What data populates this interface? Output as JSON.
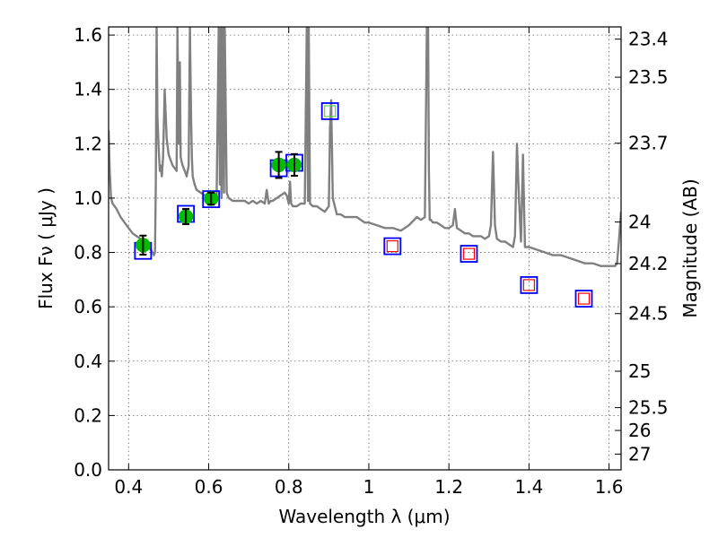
{
  "chart_data": {
    "type": "scatter",
    "title": "",
    "xlabel": "Wavelength  λ (μm)",
    "ylabel_left": "Flux  Fν  ( μJy )",
    "ylabel_right": "Magnitude (AB)",
    "xlim": [
      0.35,
      1.63
    ],
    "ylim": [
      0.0,
      1.63
    ],
    "grid": true,
    "x_ticks": [
      0.4,
      0.6,
      0.8,
      1.0,
      1.2,
      1.4,
      1.6
    ],
    "x_tick_labels": [
      "0.4",
      "0.6",
      "0.8",
      "1",
      "1.2",
      "1.4",
      "1.6"
    ],
    "y_ticks": [
      0.0,
      0.2,
      0.4,
      0.6,
      0.8,
      1.0,
      1.2,
      1.4,
      1.6
    ],
    "y_tick_labels": [
      "0.0",
      "0.2",
      "0.4",
      "0.6",
      "0.8",
      "1.0",
      "1.2",
      "1.4",
      "1.6"
    ],
    "mag_ticks": [
      {
        "label": "23.4",
        "flux": 1.585
      },
      {
        "label": "23.5",
        "flux": 1.445
      },
      {
        "label": "23.7",
        "flux": 1.202
      },
      {
        "label": "24",
        "flux": 0.912
      },
      {
        "label": "24.2",
        "flux": 0.759
      },
      {
        "label": "24.5",
        "flux": 0.575
      },
      {
        "label": "25",
        "flux": 0.363
      },
      {
        "label": "25.5",
        "flux": 0.229
      },
      {
        "label": "26",
        "flux": 0.145
      },
      {
        "label": "27",
        "flux": 0.058
      }
    ],
    "colors": {
      "spectrum": "#808080",
      "observed": "#00bb00",
      "model_box": "#0000ff",
      "synthetic_optical": "#66cc66",
      "synthetic_nir": "#ff0000",
      "errorbar": "#000000"
    },
    "series": [
      {
        "name": "model spectrum",
        "kind": "line",
        "x": [
          0.35,
          0.353,
          0.356,
          0.36,
          0.37,
          0.38,
          0.39,
          0.4,
          0.41,
          0.42,
          0.43,
          0.44,
          0.45,
          0.455,
          0.46,
          0.463,
          0.466,
          0.468,
          0.47,
          0.472,
          0.475,
          0.478,
          0.48,
          0.483,
          0.486,
          0.49,
          0.495,
          0.5,
          0.505,
          0.51,
          0.515,
          0.52,
          0.522,
          0.525,
          0.528,
          0.53,
          0.535,
          0.54,
          0.545,
          0.55,
          0.553,
          0.556,
          0.558,
          0.56,
          0.565,
          0.57,
          0.58,
          0.59,
          0.6,
          0.61,
          0.62,
          0.625,
          0.628,
          0.63,
          0.632,
          0.635,
          0.638,
          0.64,
          0.645,
          0.65,
          0.66,
          0.67,
          0.68,
          0.69,
          0.7,
          0.71,
          0.72,
          0.73,
          0.74,
          0.745,
          0.75,
          0.755,
          0.76,
          0.77,
          0.78,
          0.79,
          0.795,
          0.8,
          0.803,
          0.806,
          0.81,
          0.82,
          0.83,
          0.84,
          0.845,
          0.848,
          0.85,
          0.853,
          0.86,
          0.87,
          0.88,
          0.89,
          0.9,
          0.903,
          0.906,
          0.91,
          0.92,
          0.93,
          0.94,
          0.95,
          0.96,
          0.97,
          0.98,
          0.99,
          1.0,
          1.02,
          1.04,
          1.06,
          1.08,
          1.1,
          1.12,
          1.13,
          1.14,
          1.145,
          1.148,
          1.15,
          1.152,
          1.155,
          1.16,
          1.17,
          1.18,
          1.19,
          1.2,
          1.21,
          1.215,
          1.22,
          1.23,
          1.24,
          1.25,
          1.26,
          1.27,
          1.28,
          1.29,
          1.3,
          1.305,
          1.31,
          1.315,
          1.32,
          1.33,
          1.34,
          1.35,
          1.36,
          1.365,
          1.37,
          1.375,
          1.38,
          1.385,
          1.39,
          1.4,
          1.42,
          1.44,
          1.46,
          1.48,
          1.5,
          1.52,
          1.54,
          1.56,
          1.58,
          1.6,
          1.61,
          1.615,
          1.62,
          1.625,
          1.63
        ],
        "y": [
          1.25,
          1.1,
          1.0,
          0.98,
          0.96,
          0.93,
          0.91,
          0.89,
          0.87,
          0.86,
          0.85,
          0.84,
          0.82,
          0.81,
          0.8,
          0.79,
          0.8,
          1.05,
          1.63,
          1.3,
          1.18,
          1.1,
          1.12,
          1.08,
          1.15,
          1.4,
          1.22,
          1.16,
          1.14,
          1.12,
          1.11,
          1.1,
          1.63,
          1.2,
          1.5,
          1.15,
          1.12,
          1.1,
          1.08,
          1.12,
          1.63,
          1.3,
          1.15,
          1.08,
          1.05,
          1.03,
          1.02,
          1.01,
          1.0,
          1.0,
          1.01,
          1.63,
          1.05,
          1.63,
          1.0,
          1.63,
          1.02,
          1.63,
          1.02,
          1.0,
          0.99,
          0.99,
          0.99,
          0.99,
          0.98,
          0.99,
          0.98,
          0.99,
          0.98,
          1.03,
          0.98,
          0.99,
          0.99,
          1.0,
          1.01,
          1.02,
          1.01,
          0.98,
          1.06,
          0.98,
          0.97,
          0.97,
          0.98,
          0.98,
          1.63,
          0.99,
          1.63,
          0.98,
          0.97,
          0.97,
          0.96,
          0.95,
          0.97,
          1.26,
          1.36,
          1.0,
          0.94,
          0.94,
          0.93,
          0.93,
          0.93,
          0.93,
          0.92,
          0.91,
          0.91,
          0.9,
          0.89,
          0.89,
          0.88,
          0.9,
          0.93,
          0.92,
          0.93,
          1.63,
          1.63,
          1.1,
          0.92,
          0.92,
          0.91,
          0.91,
          0.9,
          0.89,
          0.89,
          0.9,
          0.96,
          0.89,
          0.88,
          0.87,
          0.87,
          0.86,
          0.86,
          0.86,
          0.85,
          0.86,
          0.9,
          1.17,
          0.9,
          0.85,
          0.84,
          0.84,
          0.83,
          0.82,
          0.86,
          1.2,
          1.0,
          0.84,
          1.16,
          0.82,
          0.82,
          0.81,
          0.8,
          0.79,
          0.79,
          0.78,
          0.77,
          0.76,
          0.76,
          0.75,
          0.75,
          0.75,
          0.75,
          0.76,
          0.85,
          0.95
        ]
      },
      {
        "name": "observed photometry",
        "kind": "points",
        "x": [
          0.436,
          0.543,
          0.606,
          0.775,
          0.814
        ],
        "y": [
          0.827,
          0.932,
          0.998,
          1.122,
          1.122
        ],
        "yerr": [
          0.035,
          0.028,
          0.022,
          0.048,
          0.04
        ]
      },
      {
        "name": "model photometry",
        "kind": "boxes",
        "x": [
          0.436,
          0.543,
          0.606,
          0.775,
          0.814,
          0.903,
          1.059,
          1.25,
          1.4,
          1.537
        ],
        "y": [
          0.806,
          0.942,
          0.996,
          1.11,
          1.13,
          1.32,
          0.823,
          0.795,
          0.68,
          0.63
        ]
      },
      {
        "name": "synthetic optical",
        "kind": "small-boxes",
        "x": [
          0.903
        ],
        "y": [
          1.32
        ]
      },
      {
        "name": "synthetic near-IR",
        "kind": "small-boxes",
        "x": [
          1.059,
          1.25,
          1.4,
          1.537
        ],
        "y": [
          0.823,
          0.795,
          0.68,
          0.63
        ]
      }
    ]
  }
}
